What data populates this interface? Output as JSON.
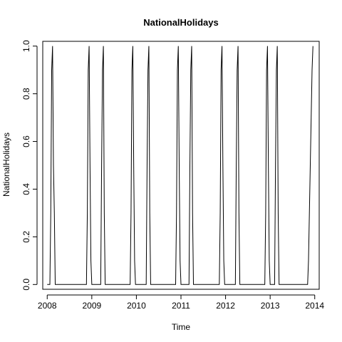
{
  "chart_data": {
    "type": "line",
    "title": "NationalHolidays",
    "xlabel": "Time",
    "ylabel": "NationalHolidays",
    "xlim": [
      2007.9,
      2014.1
    ],
    "ylim": [
      -0.02,
      1.02
    ],
    "x_ticks": [
      2008,
      2009,
      2010,
      2011,
      2012,
      2013,
      2014
    ],
    "x_tick_labels": [
      "2008",
      "2009",
      "2010",
      "2011",
      "2012",
      "2013",
      "2014"
    ],
    "y_ticks": [
      0.0,
      0.2,
      0.4,
      0.6,
      0.8,
      1.0
    ],
    "y_tick_labels": [
      "0.0",
      "0.2",
      "0.4",
      "0.6",
      "0.8",
      "1.0"
    ],
    "grid": false,
    "legend": "none",
    "series": [
      {
        "color": "#000000",
        "points": [
          [
            2008.0,
            0
          ],
          [
            2008.04,
            0
          ],
          [
            2008.06,
            0
          ],
          [
            2008.08,
            0.3
          ],
          [
            2008.1,
            0.9
          ],
          [
            2008.12,
            1.0
          ],
          [
            2008.14,
            0.5
          ],
          [
            2008.16,
            0.3
          ],
          [
            2008.18,
            0
          ],
          [
            2008.88,
            0
          ],
          [
            2008.9,
            0.3
          ],
          [
            2008.92,
            0.9
          ],
          [
            2008.94,
            1.0
          ],
          [
            2008.96,
            0.5
          ],
          [
            2008.98,
            0.1
          ],
          [
            2009.0,
            0
          ],
          [
            2009.2,
            0
          ],
          [
            2009.22,
            0.5
          ],
          [
            2009.24,
            0.9
          ],
          [
            2009.26,
            1.0
          ],
          [
            2009.28,
            0.3
          ],
          [
            2009.3,
            0
          ],
          [
            2009.86,
            0
          ],
          [
            2009.88,
            0.3
          ],
          [
            2009.9,
            0.9
          ],
          [
            2009.92,
            1.0
          ],
          [
            2009.94,
            0.5
          ],
          [
            2009.96,
            0.1
          ],
          [
            2009.98,
            0
          ],
          [
            2010.22,
            0
          ],
          [
            2010.24,
            0.5
          ],
          [
            2010.26,
            0.9
          ],
          [
            2010.28,
            1.0
          ],
          [
            2010.3,
            0.3
          ],
          [
            2010.32,
            0
          ],
          [
            2010.88,
            0
          ],
          [
            2010.9,
            0.3
          ],
          [
            2010.92,
            0.9
          ],
          [
            2010.94,
            1.0
          ],
          [
            2010.96,
            0.5
          ],
          [
            2010.98,
            0.1
          ],
          [
            2011.0,
            0
          ],
          [
            2011.18,
            0
          ],
          [
            2011.2,
            0.5
          ],
          [
            2011.22,
            0.9
          ],
          [
            2011.24,
            1.0
          ],
          [
            2011.26,
            0.3
          ],
          [
            2011.28,
            0
          ],
          [
            2011.86,
            0
          ],
          [
            2011.88,
            0.3
          ],
          [
            2011.9,
            0.9
          ],
          [
            2011.92,
            1.0
          ],
          [
            2011.94,
            0.5
          ],
          [
            2011.96,
            0.1
          ],
          [
            2011.98,
            0
          ],
          [
            2012.22,
            0
          ],
          [
            2012.24,
            0.5
          ],
          [
            2012.26,
            0.9
          ],
          [
            2012.28,
            1.0
          ],
          [
            2012.3,
            0.3
          ],
          [
            2012.32,
            0
          ],
          [
            2012.88,
            0
          ],
          [
            2012.9,
            0.3
          ],
          [
            2012.92,
            0.9
          ],
          [
            2012.94,
            1.0
          ],
          [
            2012.96,
            0.5
          ],
          [
            2012.98,
            0.1
          ],
          [
            2013.0,
            0
          ],
          [
            2013.1,
            0
          ],
          [
            2013.12,
            0.5
          ],
          [
            2013.14,
            0.9
          ],
          [
            2013.16,
            1.0
          ],
          [
            2013.18,
            0.3
          ],
          [
            2013.2,
            0
          ],
          [
            2013.84,
            0
          ],
          [
            2013.86,
            0.1
          ],
          [
            2013.88,
            0.3
          ],
          [
            2013.9,
            0.5
          ],
          [
            2013.92,
            0.7
          ],
          [
            2013.94,
            0.9
          ],
          [
            2013.96,
            1.0
          ]
        ]
      }
    ]
  }
}
